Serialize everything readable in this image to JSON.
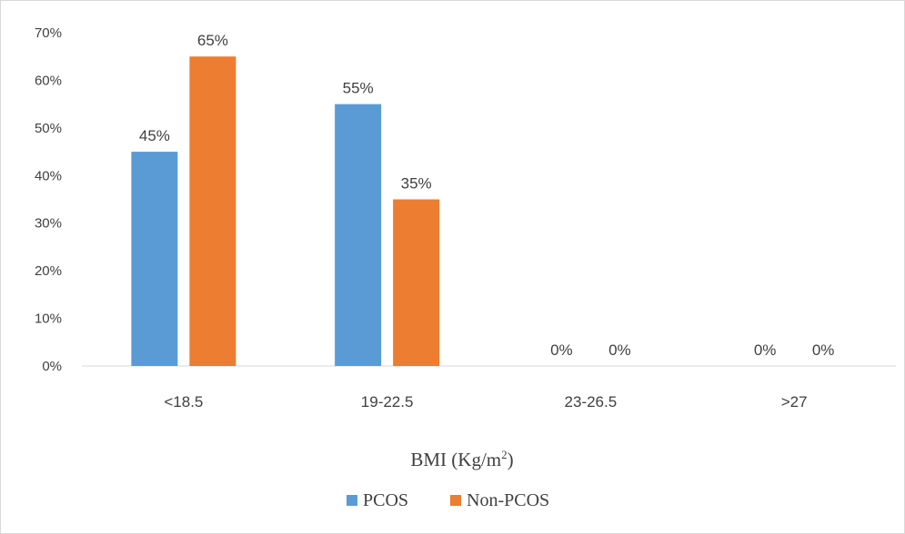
{
  "chart_data": {
    "type": "bar",
    "categories": [
      "<18.5",
      "19-22.5",
      "23-26.5",
      ">27"
    ],
    "series": [
      {
        "name": "PCOS",
        "values": [
          45,
          55,
          0,
          0
        ],
        "labels": [
          "45%",
          "55%",
          "0%",
          "0%"
        ],
        "color": "#5b9bd5"
      },
      {
        "name": "Non-PCOS",
        "values": [
          65,
          35,
          0,
          0
        ],
        "labels": [
          "65%",
          "35%",
          "0%",
          "0%"
        ],
        "color": "#ed7d31"
      }
    ],
    "ylim": [
      0,
      70
    ],
    "yticks": [
      "0%",
      "10%",
      "20%",
      "30%",
      "40%",
      "50%",
      "60%",
      "70%"
    ],
    "xlabel": "BMI (Kg/m",
    "xlabel_sup": "2",
    "xlabel_end": ")",
    "ylabel": "",
    "title": "",
    "legend_position": "bottom",
    "grid": false
  }
}
